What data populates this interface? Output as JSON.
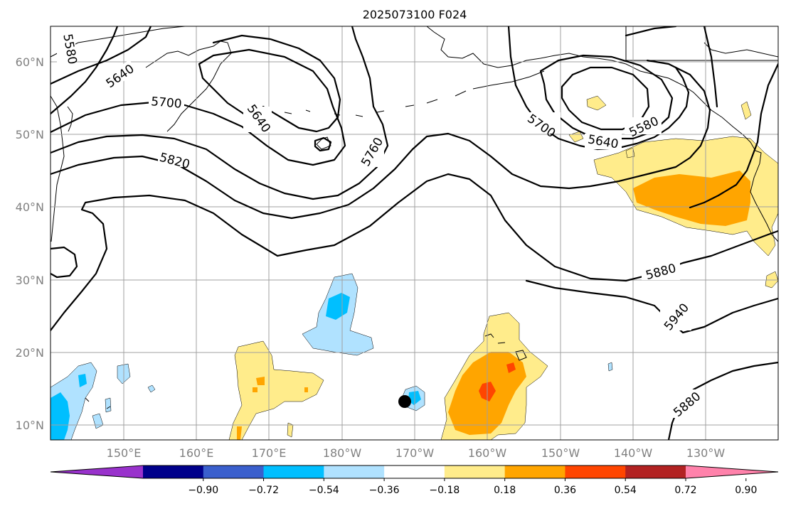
{
  "title": "2025073100 F024",
  "axes": {
    "lat_labels": [
      "60°N",
      "50°N",
      "40°N",
      "30°N",
      "20°N",
      "10°N"
    ],
    "lon_labels": [
      "150°E",
      "160°E",
      "170°E",
      "180°W",
      "170°W",
      "160°W",
      "150°W",
      "140°W",
      "130°W"
    ]
  },
  "colorbar": {
    "ticks": [
      "−0.90",
      "−0.72",
      "−0.54",
      "−0.36",
      "−0.18",
      "0.18",
      "0.36",
      "0.54",
      "0.72",
      "0.90"
    ],
    "colors": [
      "#9932CC",
      "#00008B",
      "#3A5FCD",
      "#00BFFF",
      "#B0E2FF",
      "#FFFFFF",
      "#FFEC8B",
      "#FFA500",
      "#FF4500",
      "#B22222",
      "#FF82AB"
    ]
  },
  "contour_labels": {
    "c5580_nw": "5580",
    "c5640_nw": "5640",
    "c5700_nw": "5700",
    "c5820": "5820",
    "c5640_mid": "5640",
    "c5760": "5760",
    "c5700_ne": "5700",
    "c5640_ne": "5640",
    "c5580_ne": "5580",
    "c5880_e": "5880",
    "c5940": "5940",
    "c5880_se": "5880"
  },
  "colors": {
    "contour": "#000000",
    "grid": "#a0a0a0",
    "axis_text": "#808080"
  }
}
